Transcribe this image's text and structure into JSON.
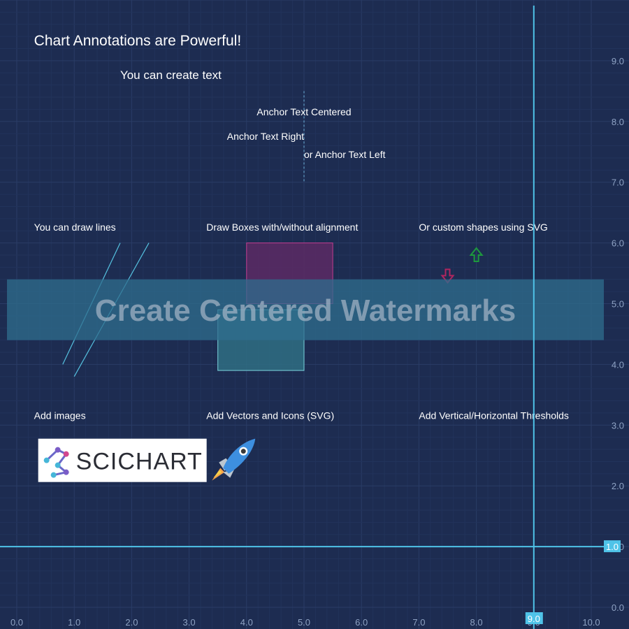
{
  "chart_data": {
    "type": "scatter",
    "title": "",
    "xlabel": "",
    "ylabel": "",
    "xlim": [
      0,
      10
    ],
    "ylim": [
      0,
      9.3
    ],
    "x_ticks": [
      "0.0",
      "1.0",
      "2.0",
      "3.0",
      "4.0",
      "5.0",
      "6.0",
      "7.0",
      "8.0",
      "9.0",
      "10.0"
    ],
    "y_ticks": [
      "0.0",
      "1.0",
      "2.0",
      "3.0",
      "4.0",
      "5.0",
      "6.0",
      "7.0",
      "8.0",
      "9.0"
    ],
    "grid": true,
    "series": [],
    "annotations": {
      "title_text": {
        "text": "Chart Annotations are Powerful!",
        "x": 0.3,
        "y": 9.25
      },
      "create_text": {
        "text": "You can create text",
        "x": 1.8,
        "y": 8.7
      },
      "anchor_centered": {
        "text": "Anchor Text Centered",
        "x": 5.0,
        "y": 8.1
      },
      "anchor_right": {
        "text": "Anchor Text Right",
        "x": 5.0,
        "y": 7.7
      },
      "anchor_left": {
        "text": "or Anchor Text Left",
        "x": 5.0,
        "y": 7.4
      },
      "anchor_guide": {
        "x": 5.0,
        "y1": 8.5,
        "y2": 7.0
      },
      "lines_label": {
        "text": "You can draw lines",
        "x": 0.3,
        "y": 6.2
      },
      "lines": [
        {
          "x1": 0.8,
          "y1": 4.0,
          "x2": 1.8,
          "y2": 6.0
        },
        {
          "x1": 1.0,
          "y1": 3.8,
          "x2": 2.3,
          "y2": 6.0
        }
      ],
      "boxes_label": {
        "text": "Draw Boxes with/without alignment",
        "x": 3.3,
        "y": 6.2
      },
      "boxes": [
        {
          "x1": 4.0,
          "y1": 5.0,
          "x2": 5.5,
          "y2": 6.0,
          "fill": "#5c2a64",
          "stroke": "#c23d8f"
        },
        {
          "x1": 3.5,
          "y1": 3.9,
          "x2": 5.0,
          "y2": 4.9,
          "fill": "#2f6f82",
          "stroke": "#7ad3dd"
        }
      ],
      "svg_label": {
        "text": "Or custom shapes using SVG",
        "x": 7.0,
        "y": 6.2
      },
      "arrow_down": {
        "x": 7.5,
        "y": 5.45,
        "color": "#b0265f"
      },
      "arrow_up": {
        "x": 8.0,
        "y": 5.8,
        "color": "#1d9a3d"
      },
      "watermark": {
        "text": "Create Centered Watermarks",
        "y1": 4.4,
        "y2": 5.4
      },
      "images_label": {
        "text": "Add images",
        "x": 0.3,
        "y": 3.1
      },
      "vectors_label": {
        "text": "Add Vectors and Icons (SVG)",
        "x": 3.3,
        "y": 3.1
      },
      "thresholds_label": {
        "text": "Add Vertical/Horizontal Thresholds",
        "x": 7.0,
        "y": 3.1
      },
      "logo": {
        "text": "SCICHART",
        "x": 0.3,
        "y": 2.8
      },
      "rocket": {
        "x": 3.3,
        "y": 2.8
      },
      "v_threshold": {
        "x": 9.0,
        "label": "9.0",
        "color": "#4fc3e8"
      },
      "h_threshold": {
        "y": 1.0,
        "label": "1.0",
        "color": "#4fc3e8"
      }
    }
  }
}
